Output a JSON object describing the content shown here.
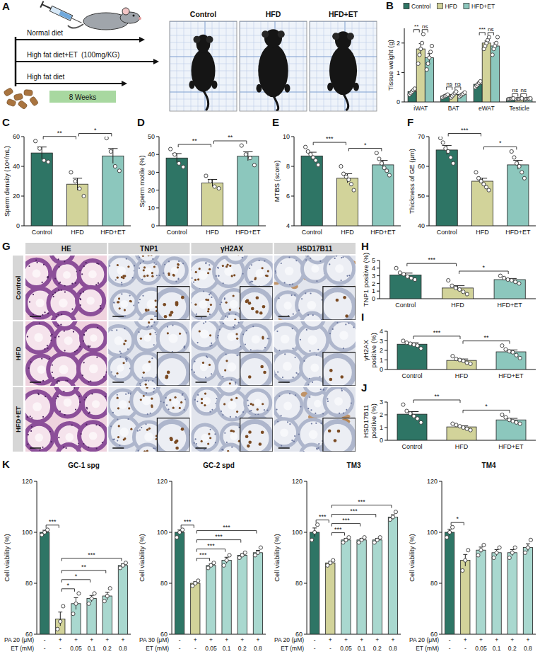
{
  "schematic": {
    "panel": "A",
    "arms": [
      "Normal diet",
      "High fat diet+ET",
      "High fat diet"
    ],
    "dose": "(100mg/KG)",
    "duration": "8 Weeks",
    "photo_labels": [
      "Control",
      "HFD",
      "HFD+ET"
    ]
  },
  "histology": {
    "panel": "G",
    "columns": [
      "HE",
      "TNP1",
      "γH2AX",
      "HSD17B11"
    ],
    "rows": [
      "Control",
      "HFD",
      "HFD+ET"
    ]
  },
  "chart_data": [
    {
      "type": "bar",
      "panel": "B",
      "ylabel": "Tissue weight (g)",
      "categories": [
        "iWAT",
        "BAT",
        "eWAT",
        "Testicle"
      ],
      "series": [
        {
          "name": "Control",
          "color": "#2e7565",
          "values": [
            0.35,
            0.2,
            0.6,
            0.1
          ],
          "errors": [
            0.05,
            0.02,
            0.04,
            0.01
          ],
          "points": [
            [
              0.25,
              0.3,
              0.35,
              0.4,
              0.45
            ],
            [
              0.15,
              0.18,
              0.2,
              0.22,
              0.25
            ],
            [
              0.5,
              0.55,
              0.6,
              0.65,
              0.7
            ],
            [
              0.09,
              0.1,
              0.1,
              0.11,
              0.12
            ]
          ]
        },
        {
          "name": "HFD",
          "color": "#d2d39a",
          "values": [
            1.8,
            0.25,
            2.0,
            0.1
          ],
          "errors": [
            0.18,
            0.03,
            0.07,
            0.01
          ],
          "points": [
            [
              1.3,
              1.6,
              1.8,
              2.0,
              2.3
            ],
            [
              0.15,
              0.2,
              0.25,
              0.3,
              0.35
            ],
            [
              1.8,
              1.9,
              2.0,
              2.1,
              2.2
            ],
            [
              0.09,
              0.1,
              0.1,
              0.11,
              0.12
            ]
          ]
        },
        {
          "name": "HFD+ET",
          "color": "#8cc7bd",
          "values": [
            1.5,
            0.25,
            1.9,
            0.1
          ],
          "errors": [
            0.14,
            0.03,
            0.1,
            0.01
          ],
          "points": [
            [
              1.1,
              1.3,
              1.5,
              1.7,
              1.9
            ],
            [
              0.18,
              0.22,
              0.25,
              0.28,
              0.32
            ],
            [
              1.6,
              1.8,
              1.9,
              2.0,
              2.2
            ],
            [
              0.09,
              0.1,
              0.1,
              0.11,
              0.12
            ]
          ]
        }
      ],
      "ylim": [
        0,
        2.5
      ],
      "yticks": [
        0,
        1,
        2
      ],
      "legend": "top",
      "significance": [
        {
          "category": 0,
          "from": 0,
          "to": 1,
          "label": "**"
        },
        {
          "category": 0,
          "from": 1,
          "to": 2,
          "label": "ns"
        },
        {
          "category": 1,
          "from": 0,
          "to": 1,
          "label": "ns"
        },
        {
          "category": 1,
          "from": 1,
          "to": 2,
          "label": "ns"
        },
        {
          "category": 2,
          "from": 0,
          "to": 1,
          "label": "***"
        },
        {
          "category": 2,
          "from": 1,
          "to": 2,
          "label": "ns"
        },
        {
          "category": 3,
          "from": 0,
          "to": 1,
          "label": "ns"
        },
        {
          "category": 3,
          "from": 1,
          "to": 2,
          "label": "ns"
        }
      ]
    },
    {
      "type": "bar",
      "panel": "C",
      "ylabel": "Sperm density (10⁶/mL)",
      "categories": [
        "Control",
        "HFD",
        "HFD+ET"
      ],
      "colors": [
        "#2e7565",
        "#d2d39a",
        "#8cc7bd"
      ],
      "values": [
        49,
        28,
        47
      ],
      "errors": [
        4,
        4,
        5
      ],
      "points": [
        [
          57,
          52,
          44,
          43
        ],
        [
          36,
          30,
          25,
          20
        ],
        [
          59,
          50,
          40,
          37
        ]
      ],
      "ylim": [
        0,
        60
      ],
      "yticks": [
        0,
        20,
        40,
        60
      ],
      "significance": [
        {
          "from": 0,
          "to": 1,
          "label": "**"
        },
        {
          "from": 1,
          "to": 2,
          "label": "*"
        }
      ]
    },
    {
      "type": "bar",
      "panel": "D",
      "ylabel": "Sperm motile (%)",
      "categories": [
        "Control",
        "HFD",
        "HFD+ET"
      ],
      "colors": [
        "#2e7565",
        "#d2d39a",
        "#8cc7bd"
      ],
      "values": [
        38,
        24,
        39
      ],
      "errors": [
        2.5,
        2,
        2.5
      ],
      "points": [
        [
          43,
          40,
          35,
          33
        ],
        [
          28,
          25,
          22,
          21
        ],
        [
          45,
          40,
          38,
          34
        ]
      ],
      "ylim": [
        0,
        50
      ],
      "yticks": [
        0,
        10,
        20,
        30,
        40,
        50
      ],
      "significance": [
        {
          "from": 0,
          "to": 1,
          "label": "**"
        },
        {
          "from": 1,
          "to": 2,
          "label": "**"
        }
      ]
    },
    {
      "type": "bar",
      "panel": "E",
      "ylabel": "MTBS (score)",
      "categories": [
        "Control",
        "HFD",
        "HFD+ET"
      ],
      "colors": [
        "#2e7565",
        "#d2d39a",
        "#8cc7bd"
      ],
      "values": [
        8.7,
        7.2,
        8.1
      ],
      "errors": [
        0.25,
        0.3,
        0.3
      ],
      "points": [
        [
          9.3,
          9.0,
          8.8,
          8.6,
          8.4,
          8.1
        ],
        [
          8.0,
          7.5,
          7.3,
          7.1,
          6.8,
          6.4
        ],
        [
          8.9,
          8.5,
          8.2,
          7.9,
          7.7,
          7.4
        ]
      ],
      "ylim": [
        4,
        10
      ],
      "yticks": [
        4,
        6,
        8,
        10
      ],
      "significance": [
        {
          "from": 0,
          "to": 1,
          "label": "***"
        },
        {
          "from": 1,
          "to": 2,
          "label": "*"
        }
      ]
    },
    {
      "type": "bar",
      "panel": "F",
      "ylabel": "Thickness of GE (μm)",
      "categories": [
        "Control",
        "HFD",
        "HFD+ET"
      ],
      "colors": [
        "#2e7565",
        "#d2d39a",
        "#8cc7bd"
      ],
      "values": [
        65.5,
        55,
        60.5
      ],
      "errors": [
        1.5,
        1,
        1.5
      ],
      "points": [
        [
          69.5,
          68,
          66,
          65,
          63,
          61
        ],
        [
          58,
          56,
          55,
          54,
          53,
          52
        ],
        [
          65,
          63,
          61,
          60,
          58,
          56
        ]
      ],
      "ylim": [
        40,
        70
      ],
      "yticks": [
        40,
        50,
        60,
        70
      ],
      "significance": [
        {
          "from": 0,
          "to": 1,
          "label": "***"
        },
        {
          "from": 1,
          "to": 2,
          "label": "*"
        }
      ]
    },
    {
      "type": "bar",
      "panel": "H",
      "ylabel": "TNP1 positive (%)",
      "categories": [
        "Control",
        "HFD",
        "HFD+ET"
      ],
      "colors": [
        "#2e7565",
        "#d2d39a",
        "#8cc7bd"
      ],
      "values": [
        3.1,
        1.4,
        2.5
      ],
      "errors": [
        0.25,
        0.3,
        0.15
      ],
      "points": [
        [
          4.0,
          3.4,
          3.2,
          2.9,
          2.7,
          2.5
        ],
        [
          2.4,
          1.7,
          1.4,
          1.2,
          0.9,
          0.6
        ],
        [
          3.0,
          2.7,
          2.5,
          2.4,
          2.2,
          2.0
        ]
      ],
      "ylim": [
        0,
        5
      ],
      "yticks": [
        0,
        1,
        2,
        3,
        4,
        5
      ],
      "significance": [
        {
          "from": 0,
          "to": 1,
          "label": "***"
        },
        {
          "from": 1,
          "to": 2,
          "label": "*"
        }
      ]
    },
    {
      "type": "bar",
      "panel": "I",
      "ylabel": "γH2AX positive (%)",
      "categories": [
        "Control",
        "HFD",
        "HFD+ET"
      ],
      "colors": [
        "#2e7565",
        "#d2d39a",
        "#8cc7bd"
      ],
      "values": [
        2.65,
        0.95,
        1.85
      ],
      "errors": [
        0.15,
        0.15,
        0.2
      ],
      "points": [
        [
          3.0,
          2.8,
          2.7,
          2.6,
          2.5,
          2.2
        ],
        [
          1.4,
          1.1,
          1.0,
          0.9,
          0.7,
          0.6
        ],
        [
          2.5,
          2.1,
          1.9,
          1.8,
          1.5,
          1.2
        ]
      ],
      "ylim": [
        0,
        4
      ],
      "yticks": [
        0,
        1,
        2,
        3,
        4
      ],
      "significance": [
        {
          "from": 0,
          "to": 1,
          "label": "***"
        },
        {
          "from": 1,
          "to": 2,
          "label": "**"
        }
      ]
    },
    {
      "type": "bar",
      "panel": "J",
      "ylabel": "HSD17B11 positive (%)",
      "categories": [
        "Control",
        "HFD",
        "HFD+ET"
      ],
      "colors": [
        "#2e7565",
        "#d2d39a",
        "#8cc7bd"
      ],
      "values": [
        2.05,
        1.05,
        1.6
      ],
      "errors": [
        0.2,
        0.08,
        0.12
      ],
      "points": [
        [
          2.8,
          2.3,
          2.1,
          1.9,
          1.7,
          1.4
        ],
        [
          1.3,
          1.2,
          1.1,
          1.0,
          0.9,
          0.8
        ],
        [
          2.0,
          1.8,
          1.6,
          1.5,
          1.4,
          1.3
        ]
      ],
      "ylim": [
        0,
        3
      ],
      "yticks": [
        0,
        1,
        2,
        3
      ],
      "significance": [
        {
          "from": 0,
          "to": 1,
          "label": "**"
        },
        {
          "from": 1,
          "to": 2,
          "label": "*"
        }
      ]
    },
    {
      "type": "bar",
      "panel": "K",
      "title": "GC-1 spg",
      "ylabel": "Cell viability (%)",
      "x_rows": [
        {
          "label": "PA 20 (μM)",
          "values": [
            "-",
            "+",
            "+",
            "+",
            "+",
            "+"
          ]
        },
        {
          "label": "ET (mM)",
          "values": [
            "-",
            "-",
            "0.05",
            "0.1",
            "0.2",
            "0.8"
          ]
        }
      ],
      "colors": [
        "#2e7565",
        "#d2d39a",
        "#a9d8cf",
        "#a9d8cf",
        "#a9d8cf",
        "#a9d8cf"
      ],
      "values": [
        100,
        66,
        72,
        74,
        75,
        87
      ],
      "errors": [
        0.8,
        2.7,
        2.3,
        1.2,
        1.5,
        0.6
      ],
      "points": [
        [
          99,
          100,
          101
        ],
        [
          62,
          65,
          71
        ],
        [
          68,
          72,
          76
        ],
        [
          72,
          74,
          76
        ],
        [
          73,
          75,
          78
        ],
        [
          86,
          87,
          88
        ]
      ],
      "ylim": [
        60,
        120
      ],
      "yticks": [
        60,
        80,
        100,
        120
      ],
      "significance": [
        {
          "from": 0,
          "to": 1,
          "label": "***"
        },
        {
          "from": 1,
          "to": 2,
          "label": "*"
        },
        {
          "from": 1,
          "to": 3,
          "label": "*"
        },
        {
          "from": 1,
          "to": 4,
          "label": "**"
        },
        {
          "from": 1,
          "to": 5,
          "label": "***"
        }
      ]
    },
    {
      "type": "bar",
      "title": "GC-2 spd",
      "ylabel": "Cell viability (%)",
      "x_rows": [
        {
          "label": "PA 30 (μM)",
          "values": [
            "-",
            "+",
            "+",
            "+",
            "+",
            "+"
          ]
        },
        {
          "label": "ET (mM)",
          "values": [
            "-",
            "-",
            "0.05",
            "0.1",
            "0.2",
            "0.8"
          ]
        }
      ],
      "colors": [
        "#2e7565",
        "#d2d39a",
        "#a9d8cf",
        "#a9d8cf",
        "#a9d8cf",
        "#a9d8cf"
      ],
      "values": [
        100,
        80,
        87,
        89,
        91,
        92
      ],
      "errors": [
        0.9,
        0.6,
        0.6,
        1.2,
        0.6,
        0.9
      ],
      "points": [
        [
          98,
          100,
          101
        ],
        [
          79,
          80,
          81
        ],
        [
          86,
          87,
          88
        ],
        [
          87,
          89,
          91
        ],
        [
          90,
          91,
          92
        ],
        [
          91,
          92,
          94
        ]
      ],
      "ylim": [
        60,
        120
      ],
      "yticks": [
        60,
        80,
        100,
        120
      ],
      "significance": [
        {
          "from": 0,
          "to": 1,
          "label": "***"
        },
        {
          "from": 1,
          "to": 2,
          "label": "***"
        },
        {
          "from": 1,
          "to": 3,
          "label": "***"
        },
        {
          "from": 1,
          "to": 4,
          "label": "***"
        },
        {
          "from": 1,
          "to": 5,
          "label": "***"
        }
      ]
    },
    {
      "type": "bar",
      "title": "TM3",
      "ylabel": "Cell viability (%)",
      "x_rows": [
        {
          "label": "PA 20 (μM)",
          "values": [
            "-",
            "+",
            "+",
            "+",
            "+",
            "+"
          ]
        },
        {
          "label": "ET (mM)",
          "values": [
            "-",
            "-",
            "0.05",
            "0.1",
            "0.2",
            "0.8"
          ]
        }
      ],
      "colors": [
        "#2e7565",
        "#d2d39a",
        "#a9d8cf",
        "#a9d8cf",
        "#a9d8cf",
        "#a9d8cf"
      ],
      "values": [
        100,
        88,
        97,
        97,
        97,
        106
      ],
      "errors": [
        1.7,
        0.6,
        0.6,
        0.6,
        0.6,
        0.9
      ],
      "points": [
        [
          97,
          100,
          103
        ],
        [
          87,
          88,
          89
        ],
        [
          96,
          97,
          98
        ],
        [
          96,
          97,
          98
        ],
        [
          96,
          97,
          98
        ],
        [
          105,
          106,
          108
        ]
      ],
      "ylim": [
        60,
        120
      ],
      "yticks": [
        60,
        80,
        100,
        120
      ],
      "significance": [
        {
          "from": 0,
          "to": 1,
          "label": "***"
        },
        {
          "from": 1,
          "to": 2,
          "label": "***"
        },
        {
          "from": 1,
          "to": 3,
          "label": "***"
        },
        {
          "from": 1,
          "to": 4,
          "label": "***"
        },
        {
          "from": 1,
          "to": 5,
          "label": "***"
        }
      ]
    },
    {
      "type": "bar",
      "title": "TM4",
      "ylabel": "Cell viability (%)",
      "x_rows": [
        {
          "label": "PA 20 (μM)",
          "values": [
            "-",
            "+",
            "+",
            "+",
            "+",
            "+"
          ]
        },
        {
          "label": "ET (mM)",
          "values": [
            "-",
            "-",
            "0.05",
            "0.1",
            "0.2",
            "0.8"
          ]
        }
      ],
      "colors": [
        "#2e7565",
        "#d2d39a",
        "#a9d8cf",
        "#a9d8cf",
        "#a9d8cf",
        "#a9d8cf"
      ],
      "values": [
        100,
        89,
        93,
        92,
        92,
        94
      ],
      "errors": [
        1.2,
        2.3,
        1.2,
        1.2,
        1.2,
        1.5
      ],
      "points": [
        [
          98,
          100,
          102
        ],
        [
          85,
          89,
          93
        ],
        [
          91,
          93,
          95
        ],
        [
          90,
          92,
          94
        ],
        [
          90,
          92,
          94
        ],
        [
          92,
          94,
          97
        ]
      ],
      "ylim": [
        60,
        120
      ],
      "yticks": [
        60,
        80,
        100,
        120
      ],
      "significance": [
        {
          "from": 0,
          "to": 1,
          "label": "*"
        }
      ]
    }
  ]
}
